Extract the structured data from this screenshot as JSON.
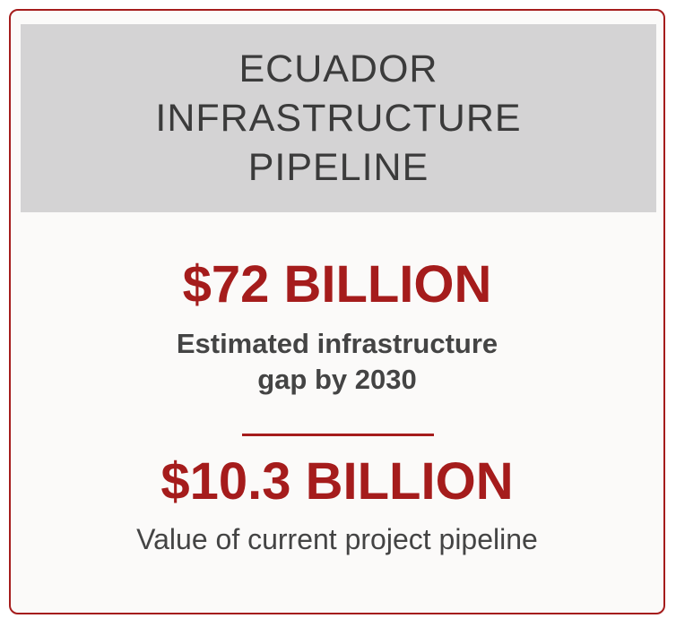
{
  "header": {
    "title_lines": [
      "ECUADOR",
      "INFRASTRUCTURE",
      "PIPELINE"
    ]
  },
  "stats": [
    {
      "value": "$72 BILLION",
      "label_lines": [
        "Estimated infrastructure",
        "gap by 2030"
      ]
    },
    {
      "value": "$10.3 BILLION",
      "label": "Value of current project pipeline"
    }
  ],
  "colors": {
    "accent": "#a51c1c",
    "header_bg": "#d4d3d4",
    "text": "#444444"
  }
}
